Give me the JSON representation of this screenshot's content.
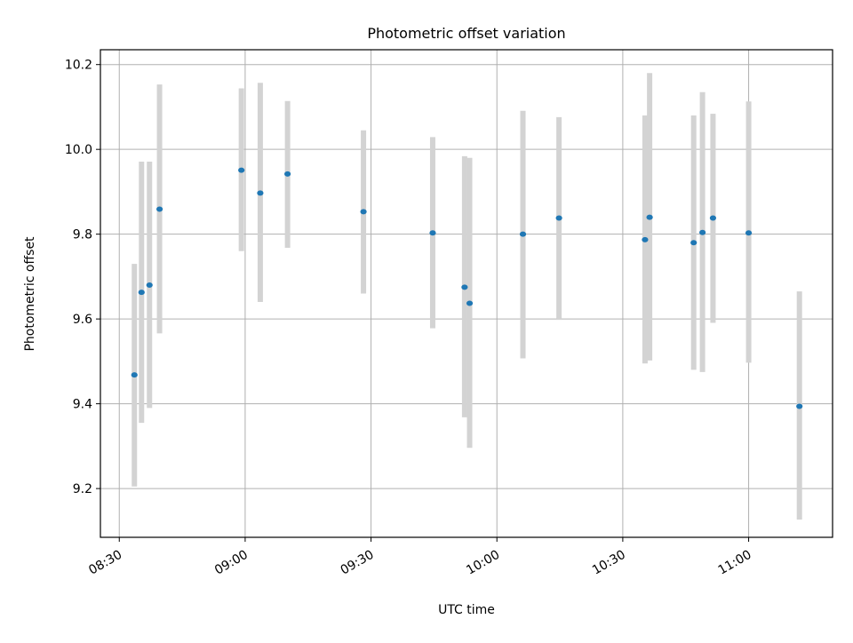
{
  "chart_data": {
    "type": "scatter",
    "title": "Photometric offset variation",
    "xlabel": "UTC time",
    "ylabel": "Photometric offset",
    "x_ticks": [
      "08:30",
      "09:00",
      "09:30",
      "10:00",
      "10:30",
      "11:00"
    ],
    "y_ticks": [
      "9.2",
      "9.4",
      "9.6",
      "9.8",
      "10.0",
      "10.2"
    ],
    "x_tick_minutes": [
      510,
      540,
      570,
      600,
      630,
      660
    ],
    "y_tick_values": [
      9.2,
      9.4,
      9.6,
      9.8,
      10.0,
      10.2
    ],
    "xlim": [
      "08:25.5",
      "11:20"
    ],
    "ylim": [
      9.085,
      10.235
    ],
    "grid": true,
    "marker_color": "#1f77b4",
    "errorbar_color": "#d3d3d3",
    "points": [
      {
        "x": "08:33.6",
        "y": 9.468,
        "ylow": 9.205,
        "yhigh": 9.73
      },
      {
        "x": "08:35.3",
        "y": 9.663,
        "ylow": 9.355,
        "yhigh": 9.971
      },
      {
        "x": "08:37.2",
        "y": 9.68,
        "ylow": 9.39,
        "yhigh": 9.971
      },
      {
        "x": "08:39.6",
        "y": 9.859,
        "ylow": 9.566,
        "yhigh": 10.153
      },
      {
        "x": "08:59.1",
        "y": 9.951,
        "ylow": 9.76,
        "yhigh": 10.144
      },
      {
        "x": "09:03.6",
        "y": 9.897,
        "ylow": 9.64,
        "yhigh": 10.157
      },
      {
        "x": "09:10.1",
        "y": 9.942,
        "ylow": 9.768,
        "yhigh": 10.114
      },
      {
        "x": "09:28.2",
        "y": 9.853,
        "ylow": 9.66,
        "yhigh": 10.045
      },
      {
        "x": "09:44.7",
        "y": 9.803,
        "ylow": 9.578,
        "yhigh": 10.029
      },
      {
        "x": "09:52.3",
        "y": 9.675,
        "ylow": 9.368,
        "yhigh": 9.984
      },
      {
        "x": "09:53.5",
        "y": 9.637,
        "ylow": 9.296,
        "yhigh": 9.98
      },
      {
        "x": "10:06.2",
        "y": 9.8,
        "ylow": 9.507,
        "yhigh": 10.091
      },
      {
        "x": "10:14.8",
        "y": 9.838,
        "ylow": 9.598,
        "yhigh": 10.076
      },
      {
        "x": "10:35.3",
        "y": 9.787,
        "ylow": 9.495,
        "yhigh": 10.08
      },
      {
        "x": "10:36.4",
        "y": 9.84,
        "ylow": 9.502,
        "yhigh": 10.18
      },
      {
        "x": "10:46.9",
        "y": 9.78,
        "ylow": 9.48,
        "yhigh": 10.08
      },
      {
        "x": "10:49.0",
        "y": 9.804,
        "ylow": 9.475,
        "yhigh": 10.135
      },
      {
        "x": "10:51.5",
        "y": 9.838,
        "ylow": 9.591,
        "yhigh": 10.084
      },
      {
        "x": "11:00.0",
        "y": 9.803,
        "ylow": 9.497,
        "yhigh": 10.113
      },
      {
        "x": "11:12.1",
        "y": 9.394,
        "ylow": 9.127,
        "yhigh": 9.665
      }
    ]
  }
}
